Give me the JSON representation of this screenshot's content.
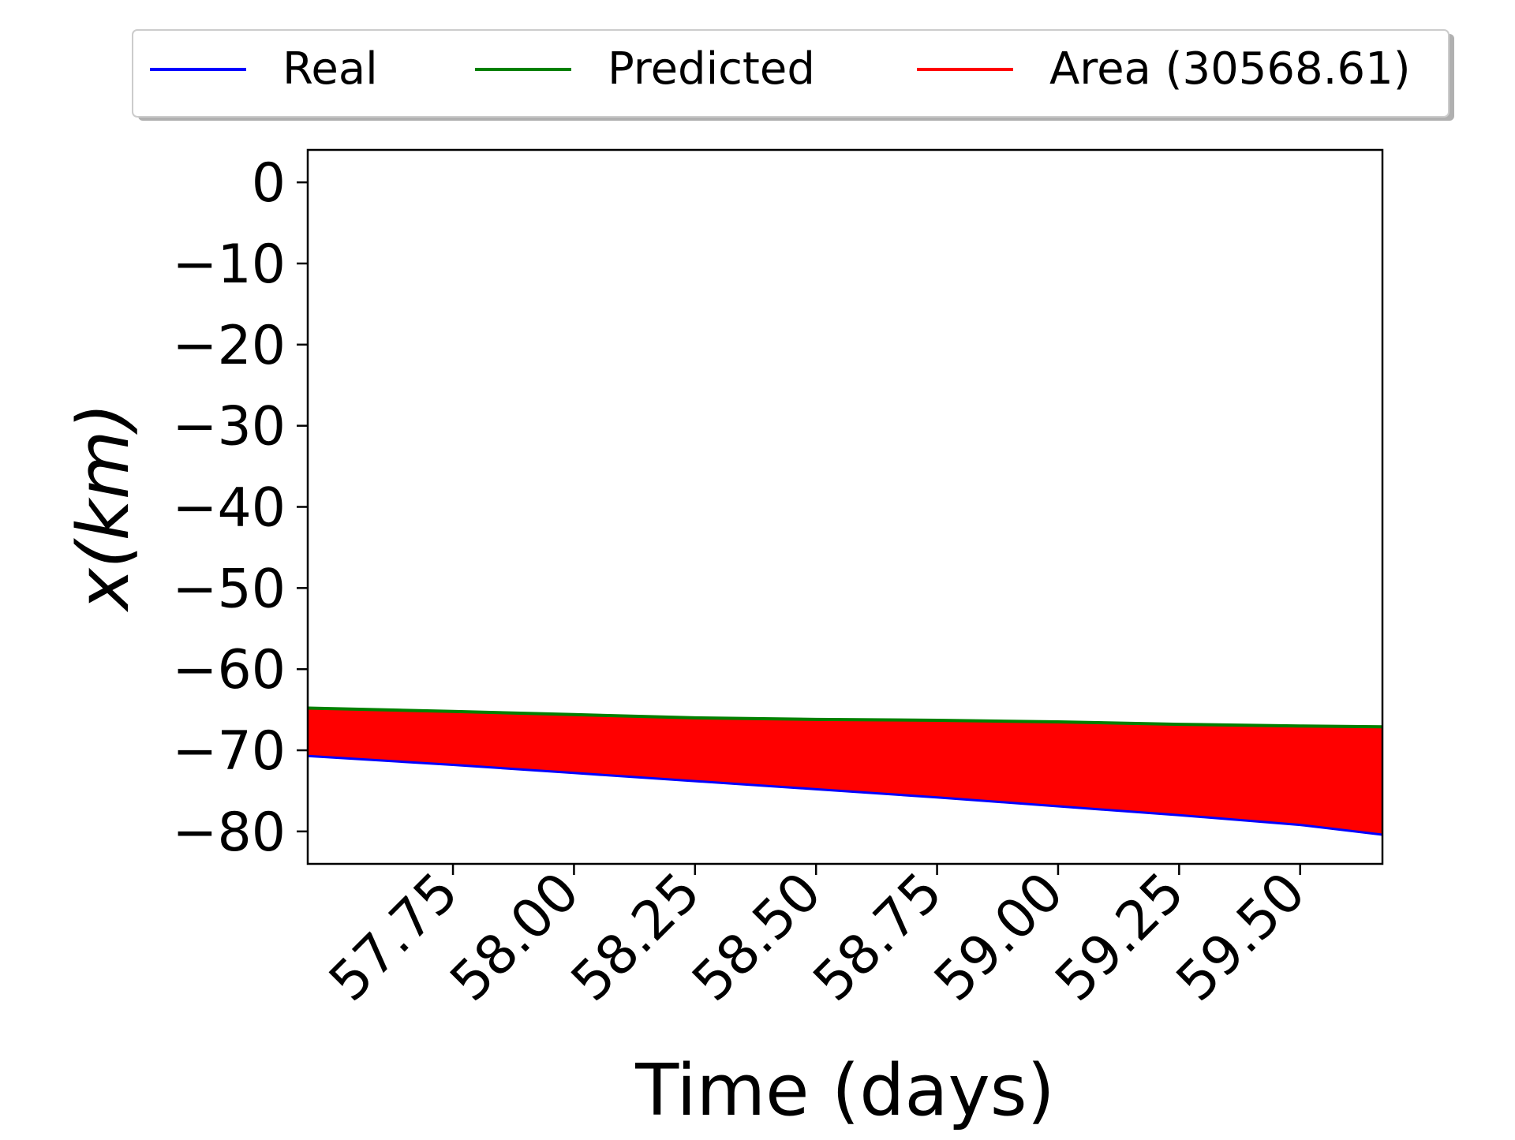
{
  "chart_data": {
    "type": "line",
    "title": "",
    "xlabel": "Time (days)",
    "ylabel": "x(km)",
    "xlim": [
      57.45,
      59.67
    ],
    "ylim": [
      -84,
      4
    ],
    "xticks": [
      57.75,
      58.0,
      58.25,
      58.5,
      58.75,
      59.0,
      59.25,
      59.5
    ],
    "xtick_labels": [
      "57.75",
      "58.00",
      "58.25",
      "58.50",
      "58.75",
      "59.00",
      "59.25",
      "59.50"
    ],
    "yticks": [
      0,
      -10,
      -20,
      -30,
      -40,
      -50,
      -60,
      -70,
      -80
    ],
    "ytick_labels": [
      "0",
      "−10",
      "−20",
      "−30",
      "−40",
      "−50",
      "−60",
      "−70",
      "−80"
    ],
    "grid": false,
    "legend": {
      "placement": "top-center (outside plot)",
      "entries": [
        "Real",
        "Predicted",
        "Area (30568.61)"
      ]
    },
    "x": [
      57.45,
      57.75,
      58.0,
      58.25,
      58.5,
      58.75,
      59.0,
      59.25,
      59.5,
      59.67
    ],
    "series": [
      {
        "name": "Real",
        "color": "#0000ff",
        "values": [
          -70.7,
          -71.8,
          -72.8,
          -73.8,
          -74.8,
          -75.8,
          -76.9,
          -78.0,
          -79.2,
          -80.4
        ]
      },
      {
        "name": "Predicted",
        "color": "#008000",
        "values": [
          -64.8,
          -65.2,
          -65.6,
          -66.0,
          -66.2,
          -66.3,
          -66.5,
          -66.8,
          -67.0,
          -67.1
        ]
      }
    ],
    "fill_between": {
      "name": "Area (30568.61)",
      "between": [
        "Real",
        "Predicted"
      ],
      "color": "#ff0000"
    }
  }
}
